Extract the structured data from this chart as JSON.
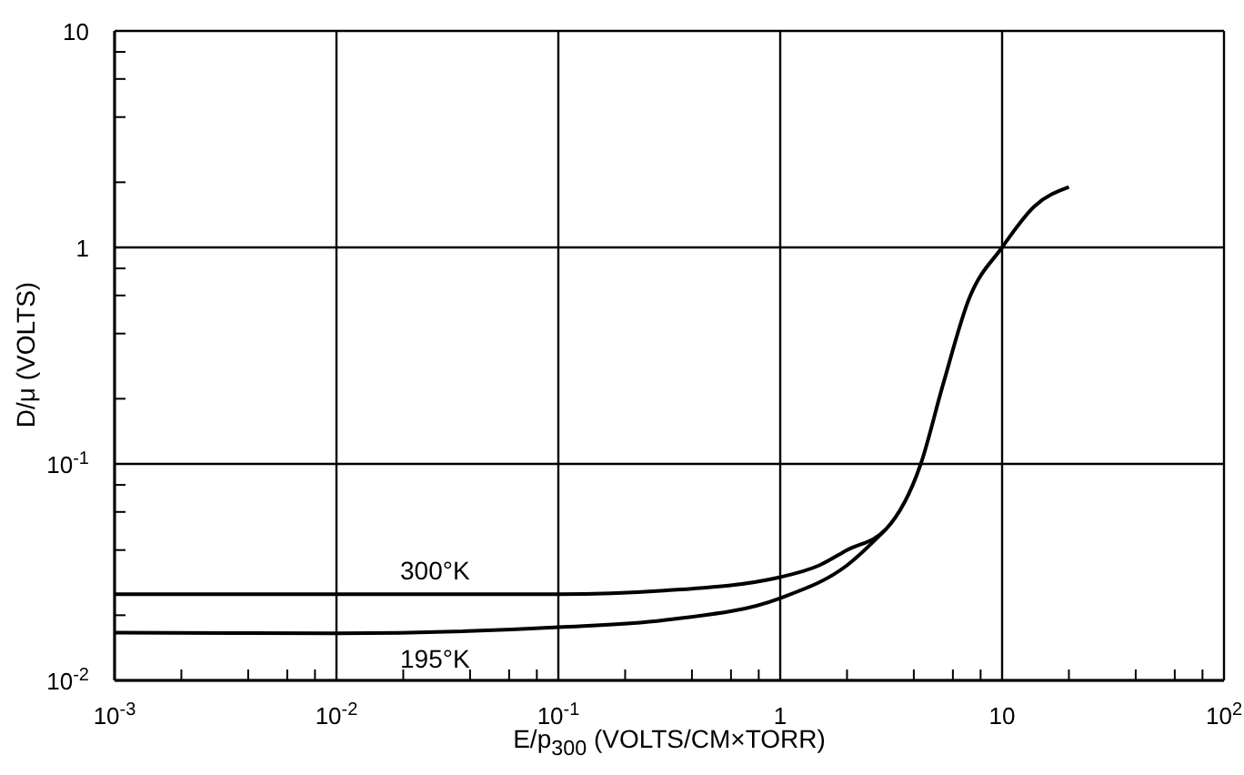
{
  "chart_data": {
    "type": "line",
    "xlabel": "E/p$_{300}$ (VOLTS/CM×TORR)",
    "ylabel": "D/μ (VOLTS)",
    "log": "xy",
    "grid": true,
    "marker": "none",
    "line_style": "solid",
    "xlim": [
      0.001,
      100
    ],
    "ylim": [
      0.01,
      10
    ],
    "xticks": [
      {
        "value": 0.001,
        "label": "10$^{-3}$"
      },
      {
        "value": 0.002,
        "label": null
      },
      {
        "value": 0.004,
        "label": null
      },
      {
        "value": 0.006,
        "label": null
      },
      {
        "value": 0.008,
        "label": null
      },
      {
        "value": 0.01,
        "label": "10$^{-2}$"
      },
      {
        "value": 0.02,
        "label": null
      },
      {
        "value": 0.04,
        "label": null
      },
      {
        "value": 0.06,
        "label": null
      },
      {
        "value": 0.08,
        "label": null
      },
      {
        "value": 0.1,
        "label": "10$^{-1}$"
      },
      {
        "value": 0.2,
        "label": null
      },
      {
        "value": 0.4,
        "label": null
      },
      {
        "value": 0.6,
        "label": null
      },
      {
        "value": 0.8,
        "label": null
      },
      1,
      {
        "value": 2,
        "label": null
      },
      {
        "value": 4,
        "label": null
      },
      {
        "value": 6,
        "label": null
      },
      {
        "value": 8,
        "label": null
      },
      10,
      {
        "value": 20,
        "label": null
      },
      {
        "value": 40,
        "label": null
      },
      {
        "value": 60,
        "label": null
      },
      {
        "value": 80,
        "label": null
      },
      {
        "value": 100,
        "label": "10$^{2}$"
      }
    ],
    "yticks": [
      {
        "value": 0.01,
        "label": "10$^{-2}$"
      },
      {
        "value": 0.02,
        "label": null
      },
      {
        "value": 0.04,
        "label": null
      },
      {
        "value": 0.06,
        "label": null
      },
      {
        "value": 0.08,
        "label": null
      },
      {
        "value": 0.1,
        "label": "10$^{-1}$"
      },
      {
        "value": 0.2,
        "label": null
      },
      {
        "value": 0.4,
        "label": null
      },
      {
        "value": 0.6,
        "label": null
      },
      {
        "value": 0.8,
        "label": null
      },
      1,
      {
        "value": 2,
        "label": null
      },
      {
        "value": 4,
        "label": null
      },
      {
        "value": 6,
        "label": null
      },
      {
        "value": 8,
        "label": null
      },
      10
    ],
    "series": [
      {
        "name": "300°K",
        "color": "#000000",
        "x": [
          0.001,
          0.01,
          0.1,
          0.3,
          1,
          1.5,
          2,
          3,
          4.3,
          5.4,
          7.1,
          10,
          14,
          20
        ],
        "values": [
          0.025,
          0.025,
          0.025,
          0.026,
          0.03,
          0.034,
          0.04,
          0.05,
          0.1,
          0.23,
          0.58,
          1,
          1.55,
          1.9
        ]
      },
      {
        "name": "195°K",
        "color": "#000000",
        "x": [
          0.001,
          0.01,
          0.1,
          0.3,
          1,
          2,
          3
        ],
        "values": [
          0.0166,
          0.0165,
          0.0176,
          0.019,
          0.024,
          0.034,
          0.05
        ]
      }
    ]
  }
}
